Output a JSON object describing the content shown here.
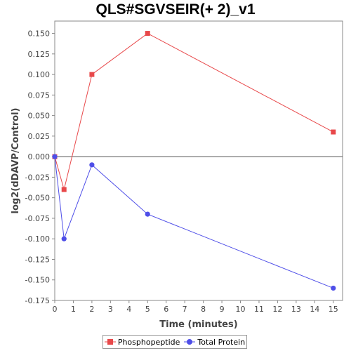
{
  "chart_data": {
    "type": "line",
    "title": "QLS#SGVSEIR(+ 2)_v1",
    "xlabel": "Time (minutes)",
    "ylabel": "log2(dDAVP/Control)",
    "xlim": [
      0,
      15.5
    ],
    "ylim": [
      -0.175,
      0.165
    ],
    "xticks": [
      "0",
      "1",
      "2",
      "3",
      "4",
      "5",
      "6",
      "7",
      "8",
      "9",
      "10",
      "11",
      "12",
      "13",
      "14",
      "15"
    ],
    "yticks": [
      "0.150",
      "0.125",
      "0.100",
      "0.075",
      "0.050",
      "0.025",
      "0.000",
      "-0.025",
      "-0.050",
      "-0.075",
      "-0.100",
      "-0.125",
      "-0.150",
      "-0.175"
    ],
    "legend_position": "bottom",
    "series": [
      {
        "name": "Phosphopeptide",
        "color": "#e8484a",
        "marker": "square",
        "points": [
          [
            0,
            0.0
          ],
          [
            0.5,
            -0.04
          ],
          [
            2,
            0.1
          ],
          [
            5,
            0.15
          ],
          [
            15,
            0.03
          ]
        ]
      },
      {
        "name": "Total Protein",
        "color": "#4e4ee8",
        "marker": "circle",
        "points": [
          [
            0,
            0.0
          ],
          [
            0.5,
            -0.1
          ],
          [
            2,
            -0.01
          ],
          [
            5,
            -0.07
          ],
          [
            15,
            -0.16
          ]
        ]
      }
    ]
  }
}
